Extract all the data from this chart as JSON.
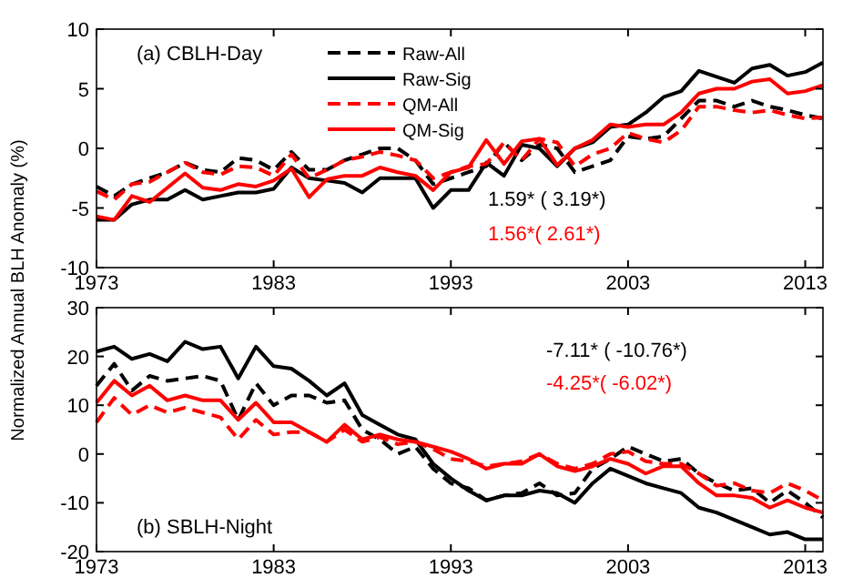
{
  "chart_data": [
    {
      "type": "line",
      "title": "(a) CBLH-Day",
      "ylabel": "Normalized Annual BLH Anomaly (%)",
      "x": [
        1973,
        1974,
        1975,
        1976,
        1977,
        1978,
        1979,
        1980,
        1981,
        1982,
        1983,
        1984,
        1985,
        1986,
        1987,
        1988,
        1989,
        1990,
        1991,
        1992,
        1993,
        1994,
        1995,
        1996,
        1997,
        1998,
        1999,
        2000,
        2001,
        2002,
        2003,
        2004,
        2005,
        2006,
        2007,
        2008,
        2009,
        2010,
        2011,
        2012,
        2013,
        2014
      ],
      "xlim": [
        1973,
        2014
      ],
      "xticks": [
        1973,
        1983,
        1993,
        2003,
        2013
      ],
      "ylim": [
        -10,
        10
      ],
      "yticks": [
        -10,
        -5,
        0,
        5,
        10
      ],
      "legend": "top",
      "annotations": [
        "1.59* ( 3.19*)",
        "1.56*( 2.61*)"
      ],
      "series": [
        {
          "name": "Raw-All",
          "color": "#000000",
          "line_style": "dashed",
          "values": [
            -3.2,
            -4,
            -3,
            -2.5,
            -2,
            -1.2,
            -1.8,
            -2,
            -0.8,
            -1,
            -1.8,
            -0.3,
            -1.8,
            -1.8,
            -1,
            -0.5,
            0,
            0,
            -1,
            -3,
            -2.5,
            -2,
            -1.5,
            0.5,
            -1,
            0.3,
            0,
            -2,
            -1.5,
            -1,
            1,
            0.8,
            1,
            2.5,
            4,
            4,
            3.5,
            4,
            3.5,
            3.2,
            2.8,
            2.5
          ]
        },
        {
          "name": "Raw-Sig",
          "color": "#000000",
          "line_style": "solid",
          "values": [
            -6,
            -6,
            -4.7,
            -4.3,
            -4.3,
            -3.5,
            -4.3,
            -4,
            -3.7,
            -3.7,
            -3.4,
            -1.6,
            -2.5,
            -2.7,
            -2.9,
            -3.7,
            -2.5,
            -2.5,
            -2.5,
            -5,
            -3.5,
            -3.5,
            -1.2,
            -2.3,
            0.3,
            0,
            -1.5,
            0,
            0.5,
            1.8,
            2,
            3,
            4.3,
            4.8,
            6.5,
            6,
            5.5,
            6.7,
            7,
            6.1,
            6.4,
            7.2
          ]
        },
        {
          "name": "QM-All",
          "color": "#ff0000",
          "line_style": "dashed",
          "values": [
            -3.6,
            -4.3,
            -3,
            -2.8,
            -2,
            -1.2,
            -2,
            -2.2,
            -1.5,
            -1.6,
            -2.3,
            -0.5,
            -2.5,
            -1.8,
            -1,
            -0.7,
            -0.3,
            -0.6,
            -1,
            -2.5,
            -2,
            -1.5,
            -1.3,
            0.5,
            -1,
            0.8,
            0.5,
            -1.5,
            -0.5,
            0,
            1.3,
            0.8,
            0.5,
            1.5,
            3.5,
            3.5,
            3.2,
            3,
            3.2,
            2.8,
            2.5,
            2.6
          ]
        },
        {
          "name": "QM-Sig",
          "color": "#ff0000",
          "line_style": "solid",
          "values": [
            -5.7,
            -6,
            -4,
            -4.5,
            -3.3,
            -2.1,
            -3.3,
            -3.5,
            -3,
            -3.2,
            -2.7,
            -1.7,
            -4.1,
            -2.6,
            -2.3,
            -2.3,
            -1.6,
            -2,
            -2.3,
            -3.5,
            -2,
            -1.6,
            0.7,
            -1.3,
            0.6,
            0.8,
            -1.4,
            0,
            0.7,
            2,
            1.8,
            2,
            2,
            3,
            4.6,
            5,
            5,
            5.6,
            5.8,
            4.6,
            4.8,
            5.3
          ]
        }
      ]
    },
    {
      "type": "line",
      "title": "(b) SBLH-Night",
      "x": [
        1973,
        1974,
        1975,
        1976,
        1977,
        1978,
        1979,
        1980,
        1981,
        1982,
        1983,
        1984,
        1985,
        1986,
        1987,
        1988,
        1989,
        1990,
        1991,
        1992,
        1993,
        1994,
        1995,
        1996,
        1997,
        1998,
        1999,
        2000,
        2001,
        2002,
        2003,
        2004,
        2005,
        2006,
        2007,
        2008,
        2009,
        2010,
        2011,
        2012,
        2013,
        2014
      ],
      "xlim": [
        1973,
        2014
      ],
      "xticks": [
        1973,
        1983,
        1993,
        2003,
        2013
      ],
      "ylim": [
        -20,
        30
      ],
      "yticks": [
        -20,
        -10,
        0,
        10,
        20,
        30
      ],
      "annotations": [
        "-7.11* ( -10.76*)",
        "-4.25*( -6.02*)"
      ],
      "series": [
        {
          "color": "#000000",
          "line_style": "dashed",
          "values": [
            14,
            18.5,
            13,
            16,
            15,
            15.5,
            16,
            15,
            7,
            14.5,
            10,
            12,
            12,
            10.5,
            11,
            5,
            3,
            0,
            1.5,
            -3,
            -6,
            -7,
            -9.5,
            -8.5,
            -8,
            -6,
            -8.5,
            -8,
            -3,
            -1,
            1.5,
            0,
            -1.5,
            -1,
            -4,
            -6,
            -7.5,
            -7,
            -10,
            -7.5,
            -10,
            -13
          ]
        },
        {
          "color": "#000000",
          "line_style": "solid",
          "values": [
            21,
            22,
            19.5,
            20.5,
            19,
            23,
            21.5,
            22,
            15.5,
            22,
            18,
            17.5,
            15,
            12,
            14.5,
            8,
            6,
            4,
            3,
            -2,
            -5,
            -7.5,
            -9.5,
            -8.5,
            -8.5,
            -7.5,
            -8,
            -10,
            -6,
            -3,
            -4.5,
            -6,
            -7,
            -8,
            -11,
            -12,
            -13.5,
            -15,
            -16.5,
            -16,
            -17.5,
            -17.5
          ]
        },
        {
          "color": "#ff0000",
          "line_style": "dashed",
          "values": [
            6.5,
            11.5,
            8,
            10,
            8.5,
            9.5,
            8.5,
            7.5,
            3,
            7,
            4,
            4.5,
            4.5,
            2.5,
            5,
            2.5,
            3.5,
            2,
            2.5,
            1,
            -1,
            -1.5,
            -2.5,
            -2,
            -1.5,
            0,
            -2,
            -3,
            -2,
            0,
            0.5,
            -1.5,
            -2,
            -2,
            -4,
            -6.5,
            -6,
            -7.5,
            -8,
            -6,
            -7.5,
            -9.5
          ]
        },
        {
          "color": "#ff0000",
          "line_style": "solid",
          "values": [
            10.5,
            15,
            12,
            14,
            11,
            12,
            11,
            11,
            7,
            10.5,
            6.5,
            6.5,
            4.5,
            2.5,
            6,
            3,
            4,
            3,
            2.5,
            1.5,
            0.5,
            -1,
            -3,
            -2,
            -2,
            0,
            -2.5,
            -3.5,
            -2.5,
            -1,
            -2,
            -4,
            -2.5,
            -2.5,
            -6,
            -8.5,
            -8.5,
            -9,
            -11,
            -9.5,
            -11,
            -12
          ]
        }
      ]
    }
  ]
}
